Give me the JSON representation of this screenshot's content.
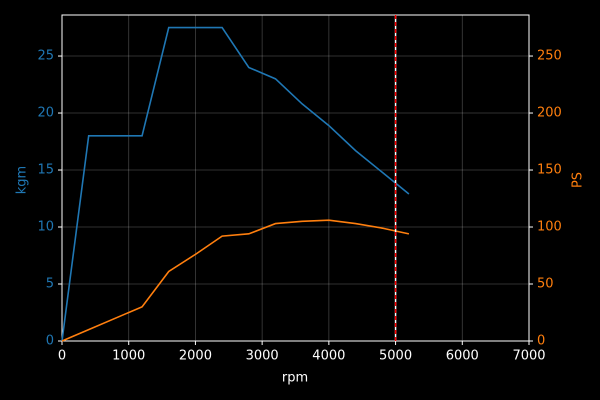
{
  "chart_data": {
    "type": "line",
    "xlabel": "rpm",
    "ylabel": "kgm",
    "y2label": "PS",
    "x": [
      0,
      400,
      1200,
      1600,
      2000,
      2400,
      2800,
      3200,
      3600,
      4000,
      4400,
      4800,
      5200
    ],
    "series": [
      {
        "color": "#1f77b4",
        "values": [
          0,
          18,
          18,
          27.5,
          27.5,
          27.5,
          24,
          23,
          20.8,
          18.9,
          16.7,
          14.8,
          12.9
        ]
      },
      {
        "color": "#ff7f0e",
        "axis": "y2",
        "values": [
          0,
          10,
          30,
          61,
          76,
          92,
          94,
          103,
          105,
          106,
          103,
          99,
          94
        ]
      }
    ],
    "xlim": [
      0,
      7000
    ],
    "xticks": [
      0,
      1000,
      2000,
      3000,
      4000,
      5000,
      6000,
      7000
    ],
    "ylim": [
      0,
      28.6
    ],
    "yticks": [
      0,
      5,
      10,
      15,
      20,
      25
    ],
    "y2lim": [
      0,
      286
    ],
    "y2ticks": [
      0,
      50,
      100,
      150,
      200,
      250
    ],
    "vline": 5000,
    "vline_color": "#ff0000",
    "grid": true
  }
}
